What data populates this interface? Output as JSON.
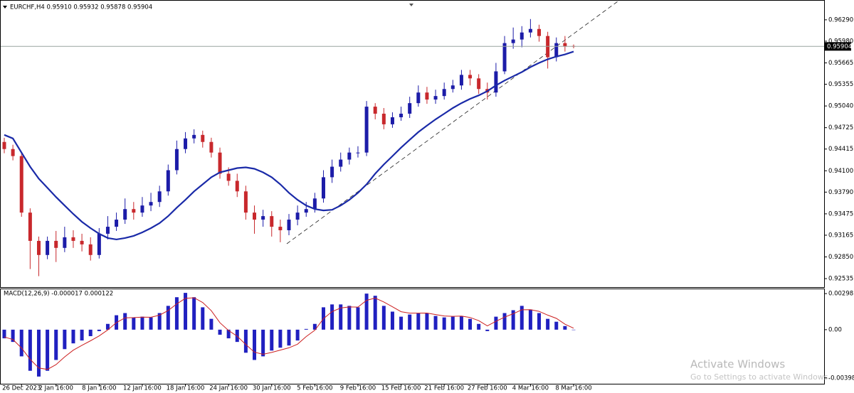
{
  "chart_data": [
    {
      "type": "candlestick",
      "title": "EURCHF,H4 0.95910 0.95932 0.95878 0.95904",
      "categories": [
        null,
        null,
        "26 Dec 2023",
        null,
        null,
        null,
        "2 Jan 16:00",
        null,
        null,
        null,
        null,
        "8 Jan 16:00",
        null,
        null,
        null,
        null,
        "12 Jan 16:00",
        null,
        null,
        null,
        null,
        "18 Jan 16:00",
        null,
        null,
        null,
        null,
        "24 Jan 16:00",
        null,
        null,
        null,
        null,
        "30 Jan 16:00",
        null,
        null,
        null,
        null,
        "5 Feb 16:00",
        null,
        null,
        null,
        null,
        "9 Feb 16:00",
        null,
        null,
        null,
        null,
        "15 Feb 16:00",
        null,
        null,
        null,
        null,
        "21 Feb 16:00",
        null,
        null,
        null,
        null,
        "27 Feb 16:00",
        null,
        null,
        null,
        null,
        "4 Mar 16:00",
        null,
        null,
        null,
        null,
        "8 Mar 16:00"
      ],
      "open": [
        0.94518,
        0.94415,
        0.94313,
        0.93493,
        0.93083,
        0.92878,
        0.93083,
        0.92981,
        0.93135,
        0.93083,
        0.93032,
        0.92878,
        0.93186,
        0.93288,
        0.93391,
        0.93544,
        0.93493,
        0.93596,
        0.93647,
        0.93801,
        0.94108,
        0.94415,
        0.94569,
        0.9462,
        0.94518,
        0.94364,
        0.94057,
        0.93954,
        0.93801,
        0.93493,
        0.93391,
        0.93442,
        0.93288,
        0.93237,
        0.93391,
        0.93493,
        0.93544,
        0.93698,
        0.94006,
        0.94159,
        0.94262,
        0.94364,
        0.94364,
        0.9503,
        0.94928,
        0.94774,
        0.94876,
        0.94928,
        0.95081,
        0.95235,
        0.95133,
        0.95184,
        0.95286,
        0.95338,
        0.95491,
        0.9544,
        0.95286,
        0.95235,
        0.95542,
        0.95952,
        0.96004,
        0.96106,
        0.96157,
        0.96055,
        0.95747,
        0.95952,
        0.9591
      ],
      "high": [
        0.94579,
        0.94477,
        0.94374,
        0.93555,
        0.93145,
        0.93145,
        0.93227,
        0.93288,
        0.93237,
        0.93186,
        0.93135,
        0.93268,
        0.93442,
        0.93493,
        0.93698,
        0.93647,
        0.93719,
        0.9378,
        0.93883,
        0.9419,
        0.94538,
        0.94661,
        0.94702,
        0.94682,
        0.94579,
        0.94436,
        0.94149,
        0.94057,
        0.93883,
        0.93596,
        0.93534,
        0.93514,
        0.93391,
        0.93473,
        0.93596,
        0.93647,
        0.9378,
        0.94108,
        0.94262,
        0.94364,
        0.94436,
        0.94456,
        0.95112,
        0.95081,
        0.9501,
        0.94948,
        0.9503,
        0.95174,
        0.95338,
        0.95317,
        0.95276,
        0.95379,
        0.95419,
        0.95563,
        0.95563,
        0.95501,
        0.95379,
        0.95665,
        0.96055,
        0.96178,
        0.96198,
        0.96301,
        0.96219,
        0.96116,
        0.96034,
        0.96055,
        0.95932
      ],
      "low": [
        0.94354,
        0.94251,
        0.93432,
        0.92674,
        0.92571,
        0.92817,
        0.92776,
        0.92919,
        0.92981,
        0.9293,
        0.92797,
        0.92827,
        0.93104,
        0.93227,
        0.93329,
        0.93391,
        0.93432,
        0.93514,
        0.93575,
        0.93739,
        0.94047,
        0.94354,
        0.94497,
        0.94436,
        0.94292,
        0.93985,
        0.93883,
        0.93719,
        0.93391,
        0.93186,
        0.93288,
        0.93145,
        0.93063,
        0.93165,
        0.93309,
        0.93432,
        0.93493,
        0.93637,
        0.93924,
        0.94088,
        0.9419,
        0.94292,
        0.94313,
        0.94846,
        0.94702,
        0.94723,
        0.94825,
        0.94866,
        0.9503,
        0.95071,
        0.95071,
        0.95133,
        0.95235,
        0.95276,
        0.95338,
        0.95215,
        0.95133,
        0.95174,
        0.95501,
        0.9587,
        0.95891,
        0.96034,
        0.95973,
        0.95583,
        0.95686,
        0.95829,
        0.95878
      ],
      "close": [
        0.94415,
        0.94313,
        0.93493,
        0.93083,
        0.92878,
        0.93083,
        0.92981,
        0.93135,
        0.93083,
        0.93032,
        0.92878,
        0.93186,
        0.93288,
        0.93391,
        0.93544,
        0.93493,
        0.93596,
        0.93647,
        0.93801,
        0.94108,
        0.94415,
        0.94569,
        0.9462,
        0.94518,
        0.94364,
        0.94057,
        0.93954,
        0.93801,
        0.93493,
        0.93391,
        0.93442,
        0.93288,
        0.93237,
        0.93391,
        0.93493,
        0.93544,
        0.93698,
        0.94006,
        0.94159,
        0.94262,
        0.94364,
        0.94364,
        0.9503,
        0.94928,
        0.94774,
        0.94876,
        0.94928,
        0.95081,
        0.95235,
        0.95133,
        0.95184,
        0.95286,
        0.95338,
        0.95491,
        0.9544,
        0.95286,
        0.95235,
        0.95542,
        0.95952,
        0.96004,
        0.96106,
        0.96157,
        0.96055,
        0.95747,
        0.95952,
        0.95901,
        0.95904
      ],
      "up_color": "#1c1ca8",
      "down_color": "#c8282c",
      "overlays": [
        {
          "color": "#1a2aa8",
          "values": [
            0.9462,
            0.94569,
            0.94364,
            0.94159,
            0.93985,
            0.93852,
            0.93719,
            0.93596,
            0.93473,
            0.9336,
            0.93268,
            0.93186,
            0.93124,
            0.93104,
            0.93124,
            0.93155,
            0.93206,
            0.93268,
            0.9334,
            0.93442,
            0.93565,
            0.93678,
            0.93801,
            0.93903,
            0.94006,
            0.94077,
            0.94108,
            0.94139,
            0.94149,
            0.94129,
            0.94077,
            0.94006,
            0.93903,
            0.9378,
            0.93678,
            0.93596,
            0.93544,
            0.93524,
            0.93534,
            0.93596,
            0.93678,
            0.9378,
            0.93903,
            0.94057,
            0.9419,
            0.94313,
            0.94436,
            0.94549,
            0.94661,
            0.94754,
            0.94846,
            0.94928,
            0.9501,
            0.95081,
            0.95143,
            0.95194,
            0.95256,
            0.95338,
            0.95409,
            0.95471,
            0.95532,
            0.95604,
            0.95665,
            0.95717,
            0.95758,
            0.95788,
            0.95829
          ]
        }
      ],
      "last_price": 0.95904,
      "ylim": [
        0.92412,
        0.96567
      ],
      "yticks": [
        {
          "value": 0.9629,
          "label": "0.96290"
        },
        {
          "value": 0.9598,
          "label": "0.95980"
        },
        0.95665,
        0.95355,
        {
          "value": 0.9504,
          "label": "0.95040"
        },
        0.94725,
        0.94415,
        {
          "value": 0.941,
          "label": "0.94100"
        },
        {
          "value": 0.9379,
          "label": "0.93790"
        },
        0.93475,
        0.93165,
        {
          "value": 0.9285,
          "label": "0.92850"
        },
        0.92535
      ],
      "grid": false
    },
    {
      "type": "macd",
      "title": "MACD(12,26,9) -0.000017 0.000122",
      "series": [
        {
          "style": "bar",
          "color": "#2020c0",
          "values": [
            -0.000715,
            -0.001013,
            -0.002205,
            -0.003397,
            -0.003874,
            -0.003397,
            -0.002503,
            -0.001609,
            -0.001132,
            -0.000894,
            -0.000536,
            -0.000119,
            0.000477,
            0.001192,
            0.001371,
            0.001013,
            0.001073,
            0.001013,
            0.001371,
            0.001967,
            0.002682,
            0.00304,
            0.002682,
            0.001848,
            0.000894,
            -0.000417,
            -0.000715,
            -0.001013,
            -0.001907,
            -0.002503,
            -0.002205,
            -0.001728,
            -0.00149,
            -0.001311,
            -0.000894,
            6e-05,
            0.000477,
            0.001848,
            0.002086,
            0.002086,
            0.001967,
            0.001848,
            0.00298,
            0.002801,
            0.001967,
            0.00149,
            0.001073,
            0.001252,
            0.001371,
            0.001371,
            0.001132,
            0.001013,
            0.001073,
            0.001132,
            0.000894,
            0.000477,
            -0.000119,
            0.001073,
            0.001371,
            0.001609,
            0.001967,
            0.001669,
            0.001371,
            0.000894,
            0.000656,
            0.000298,
            -1.7e-05
          ]
        },
        {
          "style": "line",
          "color": "#cc2020",
          "values": [
            -0.000608,
            -0.000811,
            -0.001508,
            -0.002453,
            -0.003164,
            -0.003281,
            -0.002892,
            -0.002251,
            -0.001692,
            -0.001293,
            -0.000915,
            -0.000517,
            -2e-05,
            0.000586,
            0.000979,
            0.000996,
            0.001035,
            0.001024,
            0.001198,
            0.001583,
            0.002133,
            0.002587,
            0.002635,
            0.002242,
            0.001568,
            0.000576,
            -7e-05,
            -0.000542,
            -0.001225,
            -0.001864,
            -0.002035,
            -0.001882,
            -0.001686,
            -0.001499,
            -0.001197,
            -0.000569,
            -4.6e-05,
            0.000901,
            0.001494,
            0.00179,
            0.001879,
            0.001864,
            0.002422,
            0.002612,
            0.00229,
            0.00189,
            0.001482,
            0.001367,
            0.001369,
            0.00137,
            0.001251,
            0.001132,
            0.001103,
            0.001118,
            0.001006,
            0.000742,
            0.000312,
            0.000693,
            0.001032,
            0.001321,
            0.001644,
            0.001657,
            0.001514,
            0.001204,
            0.00093,
            0.00045,
            0.000122
          ]
        }
      ],
      "ylim": [
        -0.00447,
        0.00334
      ],
      "yticks": [
        0.00298,
        {
          "value": 0,
          "label": "0.00"
        },
        -0.003987
      ]
    }
  ],
  "watermark": {
    "title": "Activate Windows",
    "subtitle": "Go to Settings to activate Windows."
  }
}
